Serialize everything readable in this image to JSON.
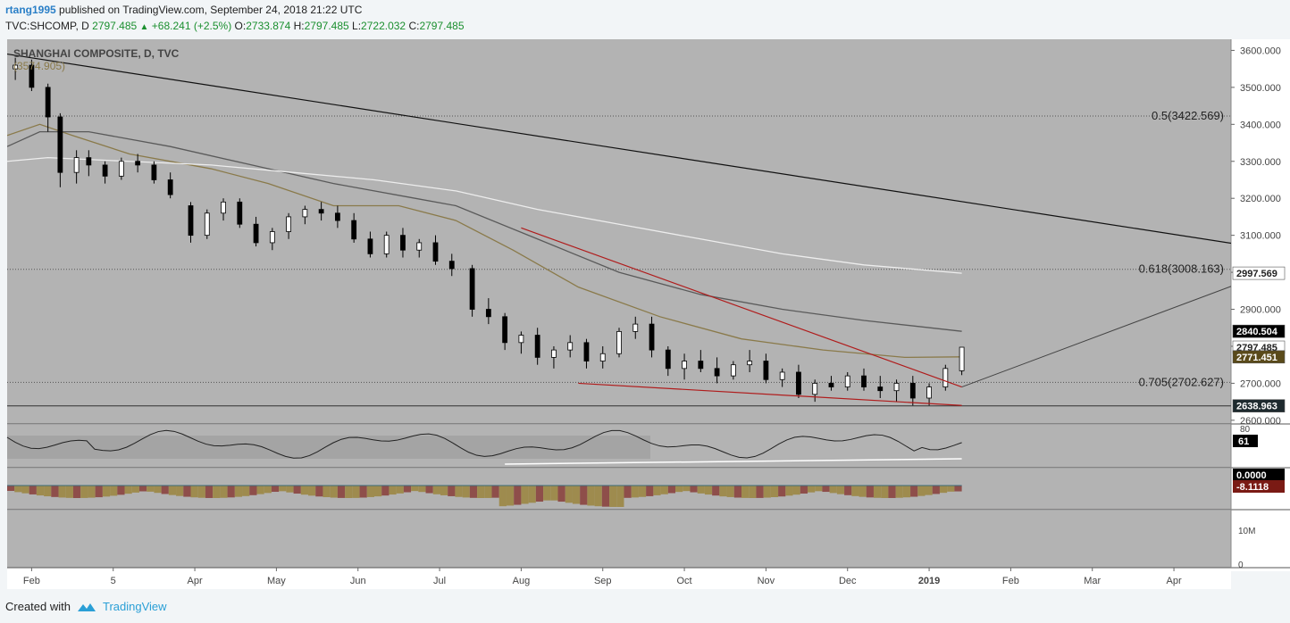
{
  "header": {
    "user": "rtang1995",
    "published": "published on TradingView.com, September 24, 2018 21:22 UTC",
    "symbol": "TVC:SHCOMP, D",
    "last": "2797.485",
    "change": "+68.241 (+2.5%)",
    "open_label": "O:",
    "open": "2733.874",
    "high_label": "H:",
    "high": "2797.485",
    "low_label": "L:",
    "low": "2722.032",
    "close_label": "C:",
    "close": "2797.485"
  },
  "legend": {
    "title": "SHANGHAI COMPOSITE, D, TVC",
    "value": "(3574.905)"
  },
  "fib_levels": [
    {
      "label": "0.5(3422.569)",
      "price": 3422.569
    },
    {
      "label": "0.618(3008.163)",
      "price": 3008.163
    },
    {
      "label": "0.705(2702.627)",
      "price": 2702.627
    }
  ],
  "price_tags": [
    {
      "text": "2997.569",
      "price": 2997.569,
      "bg": "#ffffff",
      "fg": "#222222"
    },
    {
      "text": "2840.504",
      "price": 2840.504,
      "bg": "#000000",
      "fg": "#ffffff"
    },
    {
      "text": "2797.485",
      "price": 2797.485,
      "bg": "#ffffff",
      "fg": "#222222"
    },
    {
      "text": "2771.451",
      "price": 2771.451,
      "bg": "#5a4a1a",
      "fg": "#ffffff"
    },
    {
      "text": "2638.963",
      "price": 2638.963,
      "bg": "#1e2a2e",
      "fg": "#ffffff"
    }
  ],
  "rsi": {
    "axis_label": "80",
    "tag": "61"
  },
  "macd": {
    "zero_tag": "0.0000",
    "value_tag": "-8.1118",
    "value_bg": "#7a1a14"
  },
  "volume": {
    "axis_labels": [
      "10M",
      "0"
    ]
  },
  "footer": {
    "created_with": "Created with",
    "brand": "TradingView"
  },
  "colors": {
    "panel_bg": "#b3b3b3",
    "candle": "#000000",
    "ma_fast": "#8a7a4a",
    "ma_mid": "#5a5a5a",
    "ma_slow": "#ededed",
    "trend_red": "#b01c1c",
    "macd_up": "#9e8b4e",
    "macd_down": "#8e4e4a"
  },
  "chart_data": {
    "type": "candlestick",
    "title": "SHANGHAI COMPOSITE, D, TVC",
    "price_axis": [
      3600,
      3500,
      3400,
      3300,
      3200,
      3100,
      3000,
      2900,
      2800,
      2700,
      2600
    ],
    "price_axis_labels": [
      "3600.000",
      "3500.000",
      "3400.000",
      "3300.000",
      "3200.000",
      "3100.000",
      "3000.000",
      "2900.000",
      "2800.000",
      "2700.000",
      "2600.000"
    ],
    "ylim": [
      2590,
      3630
    ],
    "x_ticks": [
      "Feb",
      "5",
      "Apr",
      "May",
      "Jun",
      "Jul",
      "Aug",
      "Sep",
      "Oct",
      "Nov",
      "Dec",
      "2019",
      "Feb",
      "Mar",
      "Apr"
    ],
    "bold_ticks": [
      "2019"
    ],
    "xlim": [
      0,
      15
    ],
    "close_path": [
      [
        0.1,
        3550
      ],
      [
        0.3,
        3520
      ],
      [
        0.6,
        3380
      ],
      [
        0.8,
        3280
      ],
      [
        1.0,
        3280
      ],
      [
        1.3,
        3250
      ],
      [
        1.7,
        3240
      ],
      [
        2.0,
        3230
      ],
      [
        2.2,
        3120
      ],
      [
        2.6,
        3150
      ],
      [
        2.8,
        3200
      ],
      [
        3.0,
        3140
      ],
      [
        3.3,
        3080
      ],
      [
        3.6,
        3130
      ],
      [
        3.9,
        3170
      ],
      [
        4.3,
        3170
      ],
      [
        4.6,
        3140
      ],
      [
        4.9,
        3060
      ],
      [
        5.2,
        3090
      ],
      [
        5.5,
        3060
      ],
      [
        5.8,
        3020
      ],
      [
        6.1,
        2900
      ],
      [
        6.4,
        2840
      ],
      [
        6.7,
        2740
      ],
      [
        7.0,
        2770
      ],
      [
        7.2,
        2800
      ],
      [
        7.4,
        2760
      ],
      [
        7.7,
        2860
      ],
      [
        8.0,
        2760
      ],
      [
        8.2,
        2720
      ],
      [
        8.5,
        2740
      ],
      [
        8.8,
        2760
      ],
      [
        9.1,
        2700
      ],
      [
        9.4,
        2720
      ],
      [
        9.7,
        2660
      ],
      [
        10.0,
        2690
      ],
      [
        10.3,
        2720
      ],
      [
        10.6,
        2700
      ],
      [
        10.8,
        2680
      ],
      [
        11.0,
        2700
      ],
      [
        11.3,
        2650
      ],
      [
        11.5,
        2720
      ],
      [
        11.7,
        2797
      ]
    ],
    "candles": [
      [
        0.1,
        3550,
        3580,
        3520,
        3560
      ],
      [
        0.3,
        3560,
        3575,
        3490,
        3500
      ],
      [
        0.5,
        3500,
        3510,
        3380,
        3420
      ],
      [
        0.65,
        3420,
        3430,
        3230,
        3270
      ],
      [
        0.85,
        3270,
        3330,
        3240,
        3310
      ],
      [
        1.0,
        3310,
        3330,
        3260,
        3290
      ],
      [
        1.2,
        3290,
        3300,
        3240,
        3260
      ],
      [
        1.4,
        3260,
        3310,
        3250,
        3300
      ],
      [
        1.6,
        3300,
        3320,
        3270,
        3290
      ],
      [
        1.8,
        3290,
        3300,
        3240,
        3250
      ],
      [
        2.0,
        3250,
        3270,
        3200,
        3210
      ],
      [
        2.25,
        3180,
        3190,
        3080,
        3100
      ],
      [
        2.45,
        3100,
        3170,
        3090,
        3160
      ],
      [
        2.65,
        3160,
        3200,
        3140,
        3190
      ],
      [
        2.85,
        3190,
        3200,
        3120,
        3130
      ],
      [
        3.05,
        3130,
        3150,
        3070,
        3080
      ],
      [
        3.25,
        3080,
        3120,
        3060,
        3110
      ],
      [
        3.45,
        3110,
        3160,
        3090,
        3150
      ],
      [
        3.65,
        3150,
        3180,
        3130,
        3170
      ],
      [
        3.85,
        3170,
        3190,
        3140,
        3160
      ],
      [
        4.05,
        3160,
        3180,
        3120,
        3140
      ],
      [
        4.25,
        3140,
        3160,
        3080,
        3090
      ],
      [
        4.45,
        3090,
        3110,
        3040,
        3050
      ],
      [
        4.65,
        3050,
        3110,
        3040,
        3100
      ],
      [
        4.85,
        3100,
        3120,
        3040,
        3060
      ],
      [
        5.05,
        3060,
        3090,
        3040,
        3080
      ],
      [
        5.25,
        3080,
        3100,
        3020,
        3030
      ],
      [
        5.45,
        3030,
        3050,
        2990,
        3010
      ],
      [
        5.7,
        3010,
        3020,
        2880,
        2900
      ],
      [
        5.9,
        2900,
        2930,
        2860,
        2880
      ],
      [
        6.1,
        2880,
        2890,
        2790,
        2810
      ],
      [
        6.3,
        2810,
        2840,
        2780,
        2830
      ],
      [
        6.5,
        2830,
        2850,
        2750,
        2770
      ],
      [
        6.7,
        2770,
        2800,
        2740,
        2790
      ],
      [
        6.9,
        2790,
        2830,
        2770,
        2810
      ],
      [
        7.1,
        2810,
        2820,
        2740,
        2760
      ],
      [
        7.3,
        2760,
        2800,
        2740,
        2780
      ],
      [
        7.5,
        2780,
        2850,
        2770,
        2840
      ],
      [
        7.7,
        2840,
        2880,
        2820,
        2860
      ],
      [
        7.9,
        2860,
        2880,
        2770,
        2790
      ],
      [
        8.1,
        2790,
        2800,
        2720,
        2740
      ],
      [
        8.3,
        2740,
        2780,
        2710,
        2760
      ],
      [
        8.5,
        2760,
        2790,
        2730,
        2740
      ],
      [
        8.7,
        2740,
        2770,
        2700,
        2720
      ],
      [
        8.9,
        2720,
        2760,
        2710,
        2750
      ],
      [
        9.1,
        2750,
        2790,
        2730,
        2760
      ],
      [
        9.3,
        2760,
        2780,
        2700,
        2710
      ],
      [
        9.5,
        2710,
        2740,
        2690,
        2730
      ],
      [
        9.7,
        2730,
        2750,
        2660,
        2670
      ],
      [
        9.9,
        2670,
        2710,
        2650,
        2700
      ],
      [
        10.1,
        2700,
        2720,
        2680,
        2690
      ],
      [
        10.3,
        2690,
        2730,
        2680,
        2720
      ],
      [
        10.5,
        2720,
        2740,
        2680,
        2690
      ],
      [
        10.7,
        2690,
        2720,
        2660,
        2680
      ],
      [
        10.9,
        2680,
        2710,
        2650,
        2700
      ],
      [
        11.1,
        2700,
        2720,
        2640,
        2660
      ],
      [
        11.3,
        2660,
        2700,
        2640,
        2690
      ],
      [
        11.5,
        2690,
        2750,
        2680,
        2740
      ],
      [
        11.7,
        2733.874,
        2797.485,
        2722.032,
        2797.485
      ]
    ],
    "series": [
      {
        "name": "",
        "color": "#8a7a4a",
        "values": [
          [
            0,
            3370
          ],
          [
            0.4,
            3400
          ],
          [
            0.8,
            3370
          ],
          [
            1.5,
            3320
          ],
          [
            2.5,
            3280
          ],
          [
            3.2,
            3240
          ],
          [
            4.0,
            3180
          ],
          [
            4.8,
            3180
          ],
          [
            5.5,
            3140
          ],
          [
            6.2,
            3060
          ],
          [
            7.0,
            2960
          ],
          [
            8.0,
            2880
          ],
          [
            9.0,
            2820
          ],
          [
            10.0,
            2790
          ],
          [
            11.0,
            2770
          ],
          [
            11.7,
            2771.451
          ]
        ]
      },
      {
        "name": "",
        "color": "#5a5a5a",
        "values": [
          [
            0,
            3340
          ],
          [
            0.4,
            3380
          ],
          [
            1.0,
            3380
          ],
          [
            2.0,
            3340
          ],
          [
            3.0,
            3290
          ],
          [
            4.0,
            3240
          ],
          [
            5.0,
            3200
          ],
          [
            5.5,
            3180
          ],
          [
            6.5,
            3090
          ],
          [
            7.5,
            3000
          ],
          [
            8.5,
            2940
          ],
          [
            9.5,
            2900
          ],
          [
            10.5,
            2870
          ],
          [
            11.7,
            2840.504
          ]
        ]
      },
      {
        "name": "",
        "color": "#ededed",
        "values": [
          [
            0,
            3300
          ],
          [
            0.5,
            3310
          ],
          [
            1.5,
            3300
          ],
          [
            2.5,
            3290
          ],
          [
            3.5,
            3270
          ],
          [
            4.5,
            3250
          ],
          [
            5.5,
            3220
          ],
          [
            6.5,
            3170
          ],
          [
            7.5,
            3130
          ],
          [
            8.5,
            3090
          ],
          [
            9.5,
            3050
          ],
          [
            10.5,
            3020
          ],
          [
            11.7,
            2997.569
          ]
        ]
      }
    ],
    "annotations": {
      "long_trendline": [
        [
          0,
          3590
        ],
        [
          22,
          2840
        ]
      ],
      "red_upper": [
        [
          6.3,
          3120
        ],
        [
          11.7,
          2690
        ]
      ],
      "red_lower": [
        [
          7.0,
          2700
        ],
        [
          11.7,
          2640
        ]
      ],
      "projection": [
        [
          11.7,
          2690
        ],
        [
          15.4,
          2995
        ],
        [
          17.5,
          2638.963
        ],
        [
          19.1,
          2638.963
        ],
        [
          19.4,
          2600
        ]
      ],
      "support_line": 2638.963
    }
  }
}
